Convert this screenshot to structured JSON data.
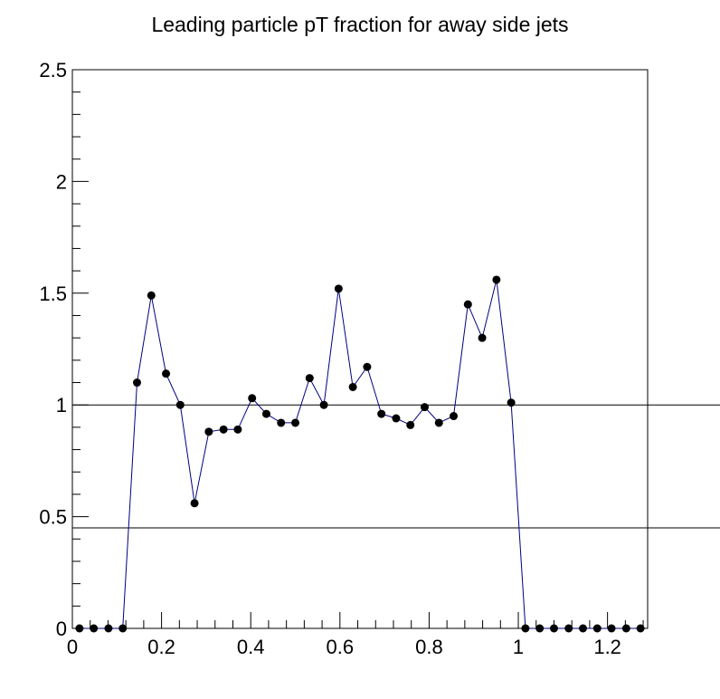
{
  "chart_data": {
    "type": "line",
    "title": "Leading particle pT fraction for away side jets",
    "xlabel": "",
    "ylabel": "",
    "xlim": [
      0,
      1.29
    ],
    "ylim": [
      0,
      2.5
    ],
    "x_ticks": [
      "0",
      "0.2",
      "0.4",
      "0.6",
      "0.8",
      "1",
      "1.2"
    ],
    "x_tick_values": [
      0,
      0.2,
      0.4,
      0.6,
      0.8,
      1.0,
      1.2
    ],
    "y_ticks": [
      "0",
      "0.5",
      "1",
      "1.5",
      "2",
      "2.5"
    ],
    "y_tick_values": [
      0,
      0.5,
      1,
      1.5,
      2,
      2.5
    ],
    "grid": false,
    "reference_lines": [
      1.0,
      0.45
    ],
    "colors": {
      "line": "#00007f",
      "marker": "#000000",
      "axis": "#000000",
      "ref_line": "#000000"
    },
    "series": [
      {
        "x": [
          0.016,
          0.048,
          0.081,
          0.113,
          0.145,
          0.177,
          0.21,
          0.242,
          0.274,
          0.306,
          0.339,
          0.371,
          0.403,
          0.435,
          0.468,
          0.5,
          0.532,
          0.564,
          0.597,
          0.629,
          0.661,
          0.693,
          0.726,
          0.758,
          0.79,
          0.822,
          0.855,
          0.887,
          0.919,
          0.951,
          0.984,
          1.016,
          1.048,
          1.08,
          1.113,
          1.145,
          1.177,
          1.209,
          1.242,
          1.274
        ],
        "y": [
          0,
          0,
          0,
          0,
          1.1,
          1.49,
          1.14,
          1.0,
          0.56,
          0.88,
          0.89,
          0.89,
          1.03,
          0.96,
          0.92,
          0.92,
          1.12,
          1.0,
          1.52,
          1.08,
          1.17,
          0.96,
          0.94,
          0.91,
          0.99,
          0.92,
          0.95,
          1.45,
          1.3,
          1.56,
          1.01,
          0,
          0,
          0,
          0,
          0,
          0,
          0,
          0,
          0
        ]
      }
    ]
  }
}
